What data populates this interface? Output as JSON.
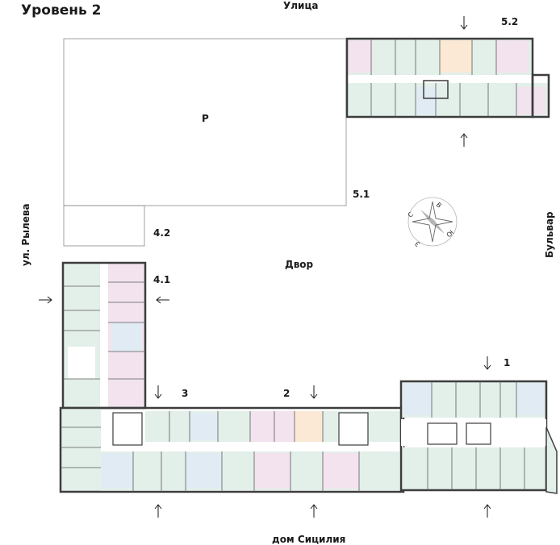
{
  "title": "Уровень 2",
  "streets": {
    "top": "Улица",
    "left": "ул. Рылева",
    "right": "Бульвар",
    "bottom": "дом Сицилия",
    "court": "Двор"
  },
  "lots": {
    "parking": "Р",
    "s51": "5.1",
    "s42": "4.2",
    "s41": "4.1",
    "s52": "5.2",
    "s1": "1",
    "s2": "2",
    "s3": "3"
  },
  "compass": {
    "n": "С",
    "e": "В",
    "s": "Ю",
    "w": "З"
  },
  "colors": {
    "wall": "#3d3d3d",
    "mint": "#e3efe9",
    "pink": "#f2e3ee",
    "peach": "#fbe8d5",
    "blue": "#e1ebf3",
    "corridor": "#ffffff"
  }
}
